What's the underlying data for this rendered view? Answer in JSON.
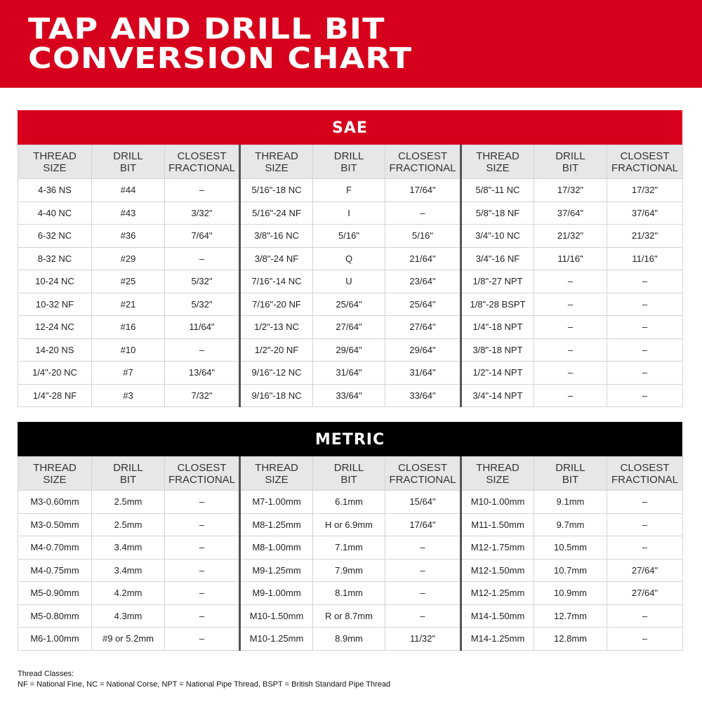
{
  "title_line1": "TAP AND DRILL BIT",
  "title_line2": "CONVERSION CHART",
  "colors": {
    "red": "#d7001c",
    "black": "#000000",
    "header_gray": "#e6e7e8"
  },
  "headers": [
    [
      "THREAD",
      "SIZE"
    ],
    [
      "DRILL",
      "BIT"
    ],
    [
      "CLOSEST",
      "FRACTIONAL"
    ]
  ],
  "sae": {
    "label": "SAE",
    "rows": [
      [
        "4-36 NS",
        "#44",
        "–",
        "5/16\"-18 NC",
        "F",
        "17/64\"",
        "5/8\"-11 NC",
        "17/32\"",
        "17/32\""
      ],
      [
        "4-40 NC",
        "#43",
        "3/32\"",
        "5/16\"-24 NF",
        "I",
        "–",
        "5/8\"-18 NF",
        "37/64\"",
        "37/64\""
      ],
      [
        "6-32 NC",
        "#36",
        "7/64\"",
        "3/8\"-16 NC",
        "5/16\"",
        "5/16\"",
        "3/4\"-10 NC",
        "21/32\"",
        "21/32\""
      ],
      [
        "8-32 NC",
        "#29",
        "–",
        "3/8\"-24 NF",
        "Q",
        "21/64\"",
        "3/4\"-16 NF",
        "11/16\"",
        "11/16\""
      ],
      [
        "10-24 NC",
        "#25",
        "5/32\"",
        "7/16\"-14 NC",
        "U",
        "23/64\"",
        "1/8\"-27 NPT",
        "–",
        "–"
      ],
      [
        "10-32 NF",
        "#21",
        "5/32\"",
        "7/16\"-20 NF",
        "25/64\"",
        "25/64\"",
        "1/8\"-28 BSPT",
        "–",
        "–"
      ],
      [
        "12-24 NC",
        "#16",
        "11/64\"",
        "1/2\"-13 NC",
        "27/64\"",
        "27/64\"",
        "1/4\"-18 NPT",
        "–",
        "–"
      ],
      [
        "14-20 NS",
        "#10",
        "–",
        "1/2\"-20 NF",
        "29/64\"",
        "29/64\"",
        "3/8\"-18 NPT",
        "–",
        "–"
      ],
      [
        "1/4\"-20 NC",
        "#7",
        "13/64\"",
        "9/16\"-12 NC",
        "31/64\"",
        "31/64\"",
        "1/2\"-14 NPT",
        "–",
        "–"
      ],
      [
        "1/4\"-28 NF",
        "#3",
        "7/32\"",
        "9/16\"-18 NC",
        "33/64\"",
        "33/64\"",
        "3/4\"-14 NPT",
        "–",
        "–"
      ]
    ]
  },
  "metric": {
    "label": "METRIC",
    "rows": [
      [
        "M3-0.60mm",
        "2.5mm",
        "–",
        "M7-1.00mm",
        "6.1mm",
        "15/64\"",
        "M10-1.00mm",
        "9.1mm",
        "–"
      ],
      [
        "M3-0.50mm",
        "2.5mm",
        "–",
        "M8-1.25mm",
        "H or 6.9mm",
        "17/64\"",
        "M11-1.50mm",
        "9.7mm",
        "–"
      ],
      [
        "M4-0.70mm",
        "3.4mm",
        "–",
        "M8-1.00mm",
        "7.1mm",
        "–",
        "M12-1.75mm",
        "10.5mm",
        "–"
      ],
      [
        "M4-0.75mm",
        "3.4mm",
        "–",
        "M9-1.25mm",
        "7.9mm",
        "–",
        "M12-1.50mm",
        "10.7mm",
        "27/64\""
      ],
      [
        "M5-0.90mm",
        "4.2mm",
        "–",
        "M9-1.00mm",
        "8.1mm",
        "–",
        "M12-1.25mm",
        "10.9mm",
        "27/64\""
      ],
      [
        "M5-0.80mm",
        "4.3mm",
        "–",
        "M10-1.50mm",
        "R or 8.7mm",
        "–",
        "M14-1.50mm",
        "12.7mm",
        "–"
      ],
      [
        "M6-1.00mm",
        "#9 or 5.2mm",
        "–",
        "M10-1.25mm",
        "8.9mm",
        "11/32\"",
        "M14-1.25mm",
        "12.8mm",
        "–"
      ]
    ]
  },
  "footer": {
    "line1": "Thread Classes:",
    "line2": "NF = National Fine, NC = National Corse, NPT = National Pipe Thread, BSPT = British Standard Pipe Thread"
  }
}
